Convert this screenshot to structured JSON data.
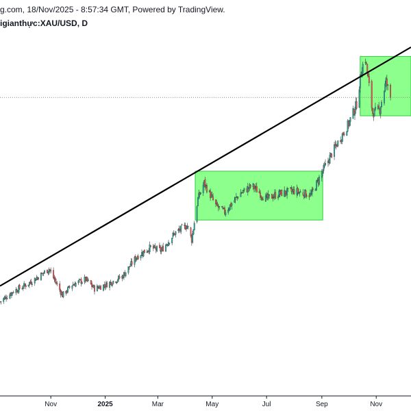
{
  "header": {
    "line1": "g.com, 18/Nov/2025 - 8:57:34 GMT, Powered by TradingView.",
    "line2": "igianthực:XAU/USD, D"
  },
  "colors": {
    "up": "#26a69a",
    "down": "#ef5350",
    "zone_fill": "#66ff66",
    "zone_stroke": "#2ecc40",
    "trendline": "#000000",
    "axis": "#131722",
    "price_line": "#888888"
  },
  "chart_data": {
    "type": "candlestick",
    "symbol": "XAU/USD",
    "timeframe": "D",
    "x_ticks": [
      "Nov",
      "2025",
      "Mar",
      "May",
      "Jul",
      "Sep",
      "Nov"
    ],
    "x_tick_dates": [
      "2024-11-01",
      "2025-01-01",
      "2025-03-01",
      "2025-05-01",
      "2025-07-01",
      "2025-09-01",
      "2025-11-01"
    ],
    "x_range": [
      "2024-09-05",
      "2025-12-10"
    ],
    "y_range": [
      1900,
      4600
    ],
    "grid": false,
    "close_path": [
      [
        "2024-09-05",
        2520
      ],
      [
        "2024-09-20",
        2600
      ],
      [
        "2024-10-05",
        2650
      ],
      [
        "2024-10-20",
        2720
      ],
      [
        "2024-10-30",
        2770
      ],
      [
        "2024-11-14",
        2570
      ],
      [
        "2024-11-25",
        2650
      ],
      [
        "2024-12-10",
        2690
      ],
      [
        "2024-12-20",
        2620
      ],
      [
        "2025-01-02",
        2650
      ],
      [
        "2025-01-20",
        2710
      ],
      [
        "2025-02-05",
        2860
      ],
      [
        "2025-02-20",
        2930
      ],
      [
        "2025-03-05",
        2910
      ],
      [
        "2025-03-20",
        3040
      ],
      [
        "2025-04-03",
        3100
      ],
      [
        "2025-04-08",
        2990
      ],
      [
        "2025-04-15",
        3300
      ],
      [
        "2025-04-22",
        3420
      ],
      [
        "2025-05-05",
        3250
      ],
      [
        "2025-05-15",
        3200
      ],
      [
        "2025-06-01",
        3340
      ],
      [
        "2025-06-15",
        3400
      ],
      [
        "2025-06-30",
        3300
      ],
      [
        "2025-07-15",
        3340
      ],
      [
        "2025-08-01",
        3360
      ],
      [
        "2025-08-20",
        3330
      ],
      [
        "2025-09-01",
        3500
      ],
      [
        "2025-09-15",
        3680
      ],
      [
        "2025-10-01",
        3870
      ],
      [
        "2025-10-10",
        4020
      ],
      [
        "2025-10-16",
        4300
      ],
      [
        "2025-10-20",
        4360
      ],
      [
        "2025-10-28",
        3950
      ],
      [
        "2025-11-05",
        3980
      ],
      [
        "2025-11-12",
        4190
      ],
      [
        "2025-11-17",
        4070
      ]
    ],
    "zones": [
      {
        "x0": "2025-04-12",
        "x1": "2025-09-02",
        "y0": 3140,
        "y1": 3510
      },
      {
        "x0": "2025-10-14",
        "x1": "2025-12-10",
        "y0": 3930,
        "y1": 4380
      }
    ],
    "trendline": {
      "x0": "2024-09-05",
      "y0": 2640,
      "x1": "2025-12-10",
      "y1": 4450
    },
    "current_price": 4069
  }
}
